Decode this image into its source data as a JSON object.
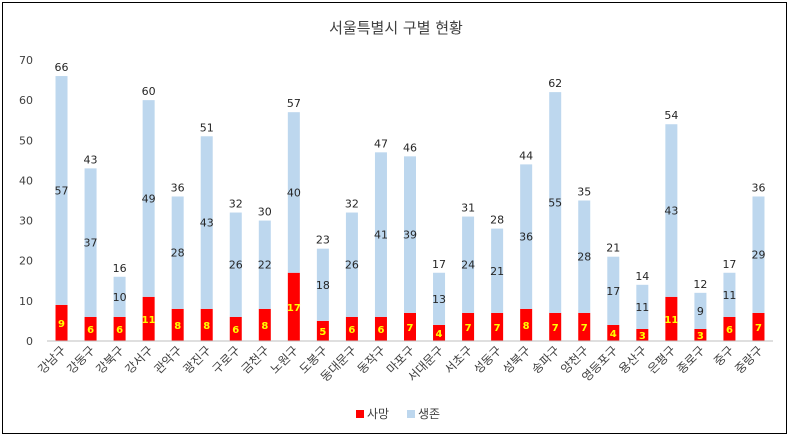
{
  "chart_data": {
    "type": "bar",
    "stacked": true,
    "title": "서울특별시 구별 현황",
    "categories": [
      "강남구",
      "강동구",
      "강북구",
      "강서구",
      "관악구",
      "광진구",
      "구로구",
      "금천구",
      "노원구",
      "도봉구",
      "동대문구",
      "동작구",
      "마포구",
      "서대문구",
      "서초구",
      "성동구",
      "성북구",
      "송파구",
      "양천구",
      "영등포구",
      "용산구",
      "은평구",
      "종로구",
      "중구",
      "중랑구"
    ],
    "series": [
      {
        "name": "사망",
        "color": "#ff0000",
        "values": [
          9,
          6,
          6,
          11,
          8,
          8,
          6,
          8,
          17,
          5,
          6,
          6,
          7,
          4,
          7,
          7,
          8,
          7,
          7,
          4,
          3,
          11,
          3,
          6,
          7
        ]
      },
      {
        "name": "생존",
        "color": "#bdd7ee",
        "values": [
          57,
          37,
          10,
          49,
          28,
          43,
          26,
          22,
          40,
          18,
          26,
          41,
          39,
          13,
          24,
          21,
          36,
          55,
          28,
          17,
          11,
          43,
          9,
          11,
          29
        ]
      }
    ],
    "totals": [
      66,
      43,
      16,
      60,
      36,
      51,
      32,
      30,
      57,
      23,
      32,
      47,
      46,
      17,
      31,
      28,
      44,
      62,
      35,
      21,
      14,
      54,
      12,
      17,
      36
    ],
    "ylim": [
      0,
      70
    ],
    "yticks": [
      0,
      10,
      20,
      30,
      40,
      50,
      60,
      70
    ],
    "grid": false,
    "legend_position": "bottom",
    "death_label_color": "#ffff00"
  }
}
